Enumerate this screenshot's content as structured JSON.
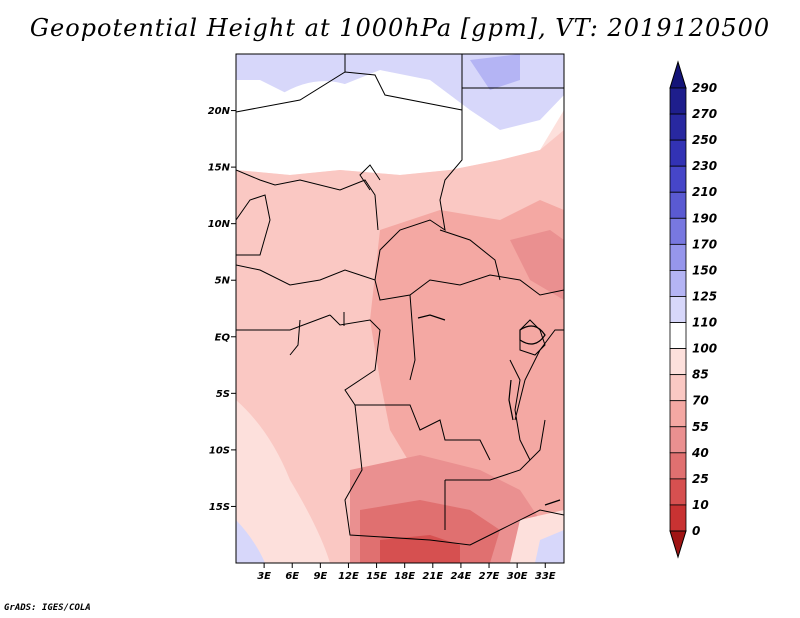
{
  "title": "Geopotential Height at 1000hPa [gpm], VT: 2019120500",
  "credit": "GrADS: IGES/COLA",
  "map": {
    "projection": "lat-lon",
    "lon_range": [
      0,
      35
    ],
    "lat_range": [
      -20,
      25
    ],
    "lat_ticks": [
      {
        "value": 20,
        "label": "20N"
      },
      {
        "value": 15,
        "label": "15N"
      },
      {
        "value": 10,
        "label": "10N"
      },
      {
        "value": 5,
        "label": "5N"
      },
      {
        "value": 0,
        "label": "EQ"
      },
      {
        "value": -5,
        "label": "5S"
      },
      {
        "value": -10,
        "label": "10S"
      },
      {
        "value": -15,
        "label": "15S"
      }
    ],
    "lon_ticks": [
      {
        "value": 3,
        "label": "3E"
      },
      {
        "value": 6,
        "label": "6E"
      },
      {
        "value": 9,
        "label": "9E"
      },
      {
        "value": 12,
        "label": "12E"
      },
      {
        "value": 15,
        "label": "15E"
      },
      {
        "value": 18,
        "label": "18E"
      },
      {
        "value": 21,
        "label": "21E"
      },
      {
        "value": 24,
        "label": "24E"
      },
      {
        "value": 27,
        "label": "27E"
      },
      {
        "value": 30,
        "label": "30E"
      },
      {
        "value": 33,
        "label": "33E"
      }
    ]
  },
  "colorbar": {
    "levels": [
      {
        "label": "290",
        "color": "#1e1e8c"
      },
      {
        "label": "270",
        "color": "#2828a0"
      },
      {
        "label": "250",
        "color": "#3232b4"
      },
      {
        "label": "230",
        "color": "#4646c8"
      },
      {
        "label": "210",
        "color": "#5a5ad2"
      },
      {
        "label": "190",
        "color": "#7878e0"
      },
      {
        "label": "170",
        "color": "#9696ec"
      },
      {
        "label": "150",
        "color": "#b4b4f4"
      },
      {
        "label": "125",
        "color": "#d7d7fa"
      },
      {
        "label": "110",
        "color": "#ffffff"
      },
      {
        "label": "100",
        "color": "#fde0dc"
      },
      {
        "label": "85",
        "color": "#fac8c3"
      },
      {
        "label": "70",
        "color": "#f4a8a3"
      },
      {
        "label": "55",
        "color": "#ea9090"
      },
      {
        "label": "40",
        "color": "#e07070"
      },
      {
        "label": "25",
        "color": "#d65050"
      },
      {
        "label": "10",
        "color": "#c83232"
      },
      {
        "label": "0",
        "color": "#b41e1e"
      }
    ],
    "top_color": "#141478",
    "bottom_color": "#a01414"
  }
}
